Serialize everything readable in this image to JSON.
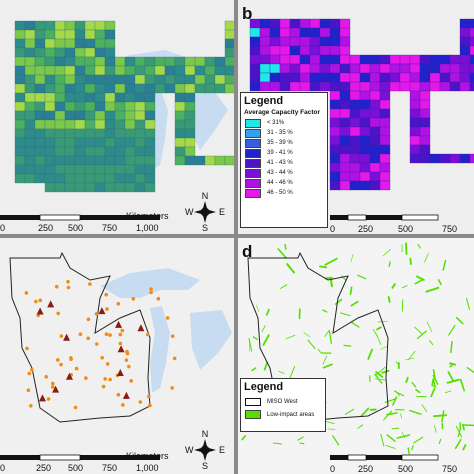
{
  "panels": [
    {
      "letter": "",
      "scalebar": {
        "ticks": [
          "0",
          "250",
          "500",
          "750",
          "1,000"
        ],
        "unit": "Kilometers"
      }
    },
    {
      "letter": "b",
      "legend": {
        "title": "Legend",
        "subtitle": "Average Capacity Factor",
        "items": [
          {
            "label": "< 31%",
            "color": "#20e8e8"
          },
          {
            "label": "31 - 35 %",
            "color": "#33a0f0"
          },
          {
            "label": "35 - 39 %",
            "color": "#3460e0"
          },
          {
            "label": "39 - 41 %",
            "color": "#2222cc"
          },
          {
            "label": "41 - 43 %",
            "color": "#4b14c8"
          },
          {
            "label": "43 - 44 %",
            "color": "#7a10d8"
          },
          {
            "label": "44 - 46 %",
            "color": "#b012e6"
          },
          {
            "label": "46 - 50 %",
            "color": "#e418e8"
          }
        ]
      },
      "scalebar": {
        "ticks": [
          "0",
          "250",
          "500",
          "750"
        ]
      }
    },
    {
      "letter": "",
      "scalebar": {
        "ticks": [
          "0",
          "250",
          "500",
          "750",
          "1,000"
        ],
        "unit": "Kilometers"
      }
    },
    {
      "letter": "d",
      "legend": {
        "title": "Legend",
        "items": [
          {
            "label": "MISO West",
            "kind": "outline"
          },
          {
            "label": "Low-impact areas",
            "color": "#55e000"
          }
        ]
      },
      "scalebar": {
        "ticks": [
          "0",
          "250",
          "500",
          "750"
        ]
      }
    }
  ],
  "compass": {
    "n": "N",
    "s": "S",
    "e": "E",
    "w": "W"
  },
  "colors": {
    "water": "#c7dcf0",
    "land_background": "#f0f0f0",
    "panel_a_greens": [
      "#2e8b8b",
      "#3a9a78",
      "#4cb060",
      "#7cc84a",
      "#a6d94a",
      "#2a7f95"
    ],
    "site_dot": "#f08c14",
    "site_triangle": "#8b1a10",
    "low_impact": "#55e000"
  }
}
